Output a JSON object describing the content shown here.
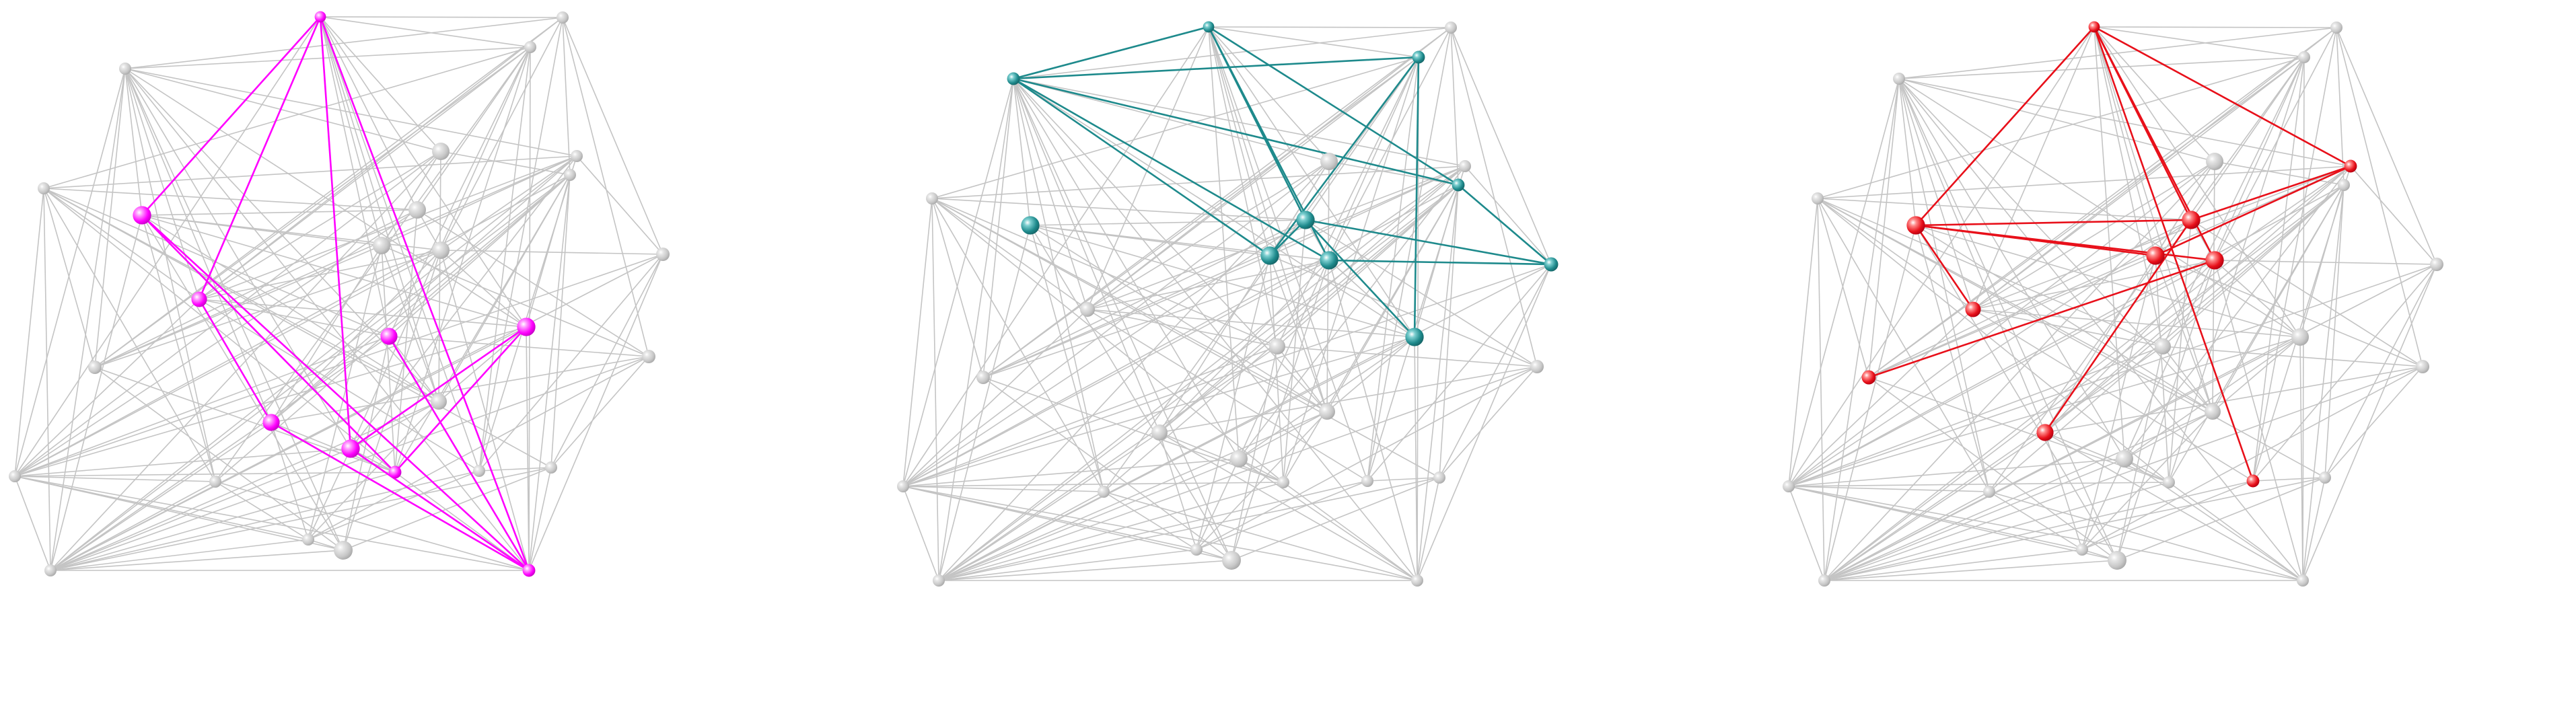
{
  "colors": {
    "background": "#ffffff",
    "edge_gray": "#c4c4c4",
    "node_gray": "#c8c8c8"
  },
  "panels": [
    {
      "name": "graph-panel-magenta",
      "highlight_color": "#ff00ff",
      "highlight_light": "#ff99ff",
      "highlight_dark": "#c300c3"
    },
    {
      "name": "graph-panel-teal",
      "highlight_color": "#1e8a8c",
      "highlight_light": "#7ccfd0",
      "highlight_dark": "#156466"
    },
    {
      "name": "graph-panel-red",
      "highlight_color": "#e8101a",
      "highlight_light": "#ff8a8a",
      "highlight_dark": "#b00010"
    }
  ]
}
